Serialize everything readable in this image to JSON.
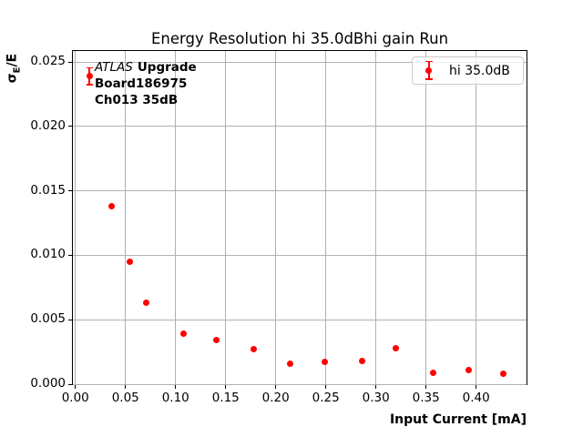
{
  "chart_data": {
    "type": "scatter",
    "title": "Energy Resolution hi 35.0dBhi gain Run",
    "xlabel": "Input Current [mA]",
    "ylabel": "σE/E",
    "ylabel_parts": {
      "sigma": "σ",
      "sub": "E",
      "rest": "/E"
    },
    "xlim": [
      -0.0025,
      0.4503
    ],
    "ylim": [
      0.0,
      0.02585
    ],
    "grid": true,
    "grid_color": "#b0b0b0",
    "axis_color": "#000000",
    "xticks": {
      "values": [
        0.0,
        0.05,
        0.1,
        0.15,
        0.2,
        0.25,
        0.3,
        0.35,
        0.4
      ],
      "labels": [
        "0.00",
        "0.05",
        "0.10",
        "0.15",
        "0.20",
        "0.25",
        "0.30",
        "0.35",
        "0.40"
      ]
    },
    "yticks": {
      "values": [
        0.0,
        0.005,
        0.01,
        0.015,
        0.02,
        0.025
      ],
      "labels": [
        "0.000",
        "0.005",
        "0.010",
        "0.015",
        "0.020",
        "0.025"
      ]
    },
    "series": [
      {
        "name": "hi 35.0dB",
        "color": "#ff0000",
        "marker": "circle-with-errorbar",
        "x": [
          0.014,
          0.036,
          0.054,
          0.071,
          0.108,
          0.141,
          0.178,
          0.214,
          0.249,
          0.286,
          0.32,
          0.357,
          0.393,
          0.427
        ],
        "y": [
          0.0239,
          0.0138,
          0.0095,
          0.0063,
          0.0039,
          0.0034,
          0.0027,
          0.0016,
          0.0017,
          0.0018,
          0.0028,
          0.0009,
          0.0011,
          0.0008
        ],
        "yerr": [
          0.00065,
          8e-05,
          8e-05,
          8e-05,
          8e-05,
          8e-05,
          8e-05,
          8e-05,
          8e-05,
          8e-05,
          8e-05,
          8e-05,
          8e-05,
          8e-05
        ]
      }
    ],
    "legend": {
      "label": "hi 35.0dB",
      "location": "upper right"
    },
    "annotation": {
      "line1_italic": "ATLAS",
      "line1_bold": "Upgrade",
      "line2": "Board186975",
      "line3": "Ch013 35dB"
    }
  }
}
